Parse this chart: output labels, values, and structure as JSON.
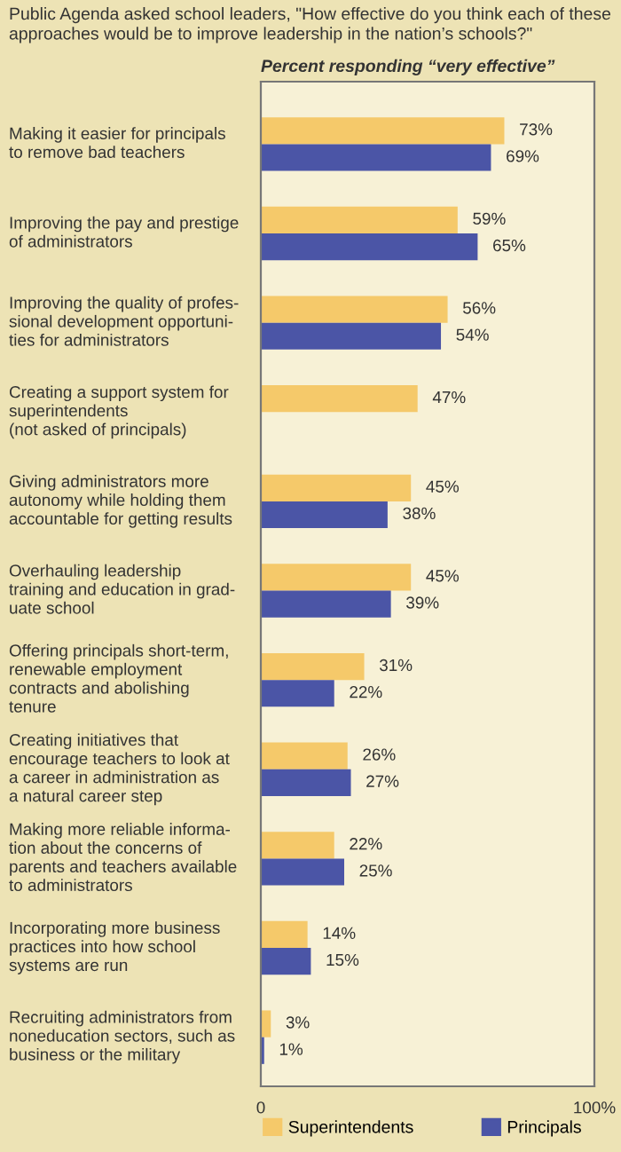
{
  "chart_data": {
    "type": "bar",
    "orientation": "horizontal",
    "title": "Public Agenda asked school leaders, \"How effective do you think each of these approaches would be to improve leadership in the nation’s schools?\"",
    "xlabel": "Percent responding “very effective”",
    "categories": [
      "Making it easier for principals\nto remove bad teachers",
      "Improving the pay and prestige\nof administrators",
      "Improving the quality of profes-\nsional development opportuni-\nties for administrators",
      "Creating a support system for\nsuperintendents\n(not asked of principals)",
      "Giving administrators more\nautonomy while holding them\naccountable for getting results",
      "Overhauling leadership\ntraining and education in grad-\nuate school",
      "Offering principals short-term,\nrenewable employment\ncontracts and abolishing\ntenure",
      "Creating initiatives that\nencourage teachers to look at\na career in administration as\na natural career step",
      "Making more reliable informa-\ntion about the concerns of\nparents and teachers available\nto administrators",
      "Incorporating more business\npractices into how school\nsystems are run",
      "Recruiting administrators from\nnoneducation sectors, such as\nbusiness or the military"
    ],
    "series": [
      {
        "name": "Superintendents",
        "color": "#f5c96a",
        "values": [
          73,
          59,
          56,
          47,
          45,
          45,
          31,
          26,
          22,
          14,
          3
        ],
        "value_labels": [
          "73%",
          "59%",
          "56%",
          "47%",
          "45%",
          "45%",
          "31%",
          "26%",
          "22%",
          "14%",
          "3%"
        ]
      },
      {
        "name": "Principals",
        "color": "#4b55a6",
        "values": [
          69,
          65,
          54,
          null,
          38,
          39,
          22,
          27,
          25,
          15,
          1
        ],
        "value_labels": [
          "69%",
          "65%",
          "54%",
          null,
          "38%",
          "39%",
          "22%",
          "27%",
          "25%",
          "15%",
          "1%"
        ]
      }
    ],
    "xlim": [
      0,
      100
    ],
    "xticks": [
      {
        "value": 0,
        "label": "0"
      },
      {
        "value": 100,
        "label": "100%"
      }
    ],
    "grid": false,
    "legend": "bottom"
  }
}
